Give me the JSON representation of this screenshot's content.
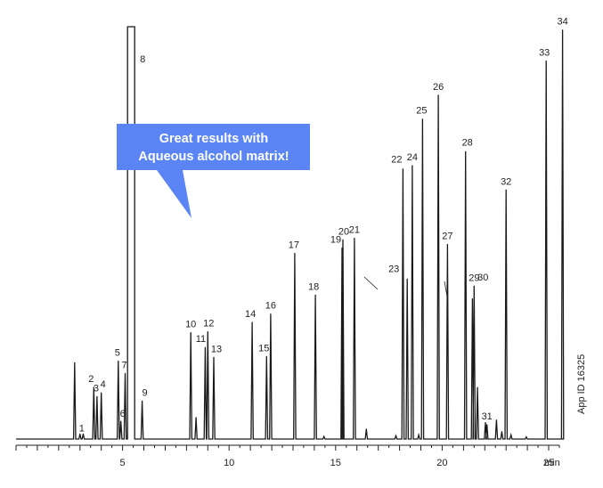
{
  "chart_data": {
    "type": "line",
    "title": "",
    "xlabel": "",
    "ylabel": "",
    "xlim": [
      0,
      25.5
    ],
    "x_ticks": [
      {
        "value": 5,
        "label": "5"
      },
      {
        "value": 10,
        "label": "10"
      },
      {
        "value": 15,
        "label": "15"
      },
      {
        "value": 20,
        "label": "20"
      },
      {
        "value": 25,
        "label": "25"
      }
    ],
    "x_unit": "min",
    "ylim": [
      0,
      100
    ],
    "grid": false,
    "side_label": "App ID 16325",
    "callout": {
      "lines": [
        "Great results with",
        "Aqueous alcohol matrix!"
      ],
      "color": "#5b85f5"
    },
    "line_color": "#1a1a1a",
    "peaks": [
      {
        "label": "",
        "x": 2.75,
        "h": 18.5
      },
      {
        "label": "1",
        "x": 3.0,
        "h": 1.2
      },
      {
        "label": "",
        "x": 3.15,
        "h": 1.2
      },
      {
        "label": "2",
        "x": 3.65,
        "h": 12.5
      },
      {
        "label": "3",
        "x": 3.8,
        "h": 10.3
      },
      {
        "label": "4",
        "x": 4.0,
        "h": 11.2
      },
      {
        "label": "5",
        "x": 4.8,
        "h": 18.9
      },
      {
        "label": "6",
        "x": 4.92,
        "h": 4.3
      },
      {
        "label": "7",
        "x": 5.12,
        "h": 15.9
      },
      {
        "label": "8",
        "x": 5.4,
        "h": 100,
        "flat": true
      },
      {
        "label": "9",
        "x": 5.92,
        "h": 9.2
      },
      {
        "label": "10",
        "x": 8.2,
        "h": 25.8
      },
      {
        "label": "",
        "x": 8.45,
        "h": 5.2
      },
      {
        "label": "11",
        "x": 8.88,
        "h": 22.2
      },
      {
        "label": "12",
        "x": 9.0,
        "h": 26.0
      },
      {
        "label": "13",
        "x": 9.28,
        "h": 19.8
      },
      {
        "label": "14",
        "x": 11.08,
        "h": 28.3
      },
      {
        "label": "15",
        "x": 11.76,
        "h": 20.0
      },
      {
        "label": "16",
        "x": 11.95,
        "h": 30.3
      },
      {
        "label": "17",
        "x": 13.08,
        "h": 45.0
      },
      {
        "label": "18",
        "x": 14.05,
        "h": 34.9
      },
      {
        "label": "",
        "x": 14.45,
        "h": 0.6
      },
      {
        "label": "19",
        "x": 15.3,
        "h": 46.3
      },
      {
        "label": "20",
        "x": 15.34,
        "h": 48.3
      },
      {
        "label": "21",
        "x": 15.88,
        "h": 48.7
      },
      {
        "label": "",
        "x": 16.44,
        "h": 2.4
      },
      {
        "label": "",
        "x": 17.83,
        "h": 0.8
      },
      {
        "label": "22",
        "x": 18.16,
        "h": 65.5
      },
      {
        "label": "23",
        "x": 18.36,
        "h": 38.8
      },
      {
        "label": "24",
        "x": 18.6,
        "h": 66.3
      },
      {
        "label": "",
        "x": 18.9,
        "h": 1.0
      },
      {
        "label": "25",
        "x": 19.08,
        "h": 77.6
      },
      {
        "label": "26",
        "x": 19.82,
        "h": 83.4
      },
      {
        "label": "27",
        "x": 20.25,
        "h": 47.2
      },
      {
        "label": "28",
        "x": 21.1,
        "h": 69.7
      },
      {
        "label": "29",
        "x": 21.42,
        "h": 34.0
      },
      {
        "label": "30",
        "x": 21.5,
        "h": 37.1
      },
      {
        "label": "",
        "x": 21.66,
        "h": 12.5
      },
      {
        "label": "",
        "x": 22.03,
        "h": 4.0
      },
      {
        "label": "31",
        "x": 22.1,
        "h": 3.5
      },
      {
        "label": "",
        "x": 22.55,
        "h": 4.6
      },
      {
        "label": "",
        "x": 22.8,
        "h": 1.8
      },
      {
        "label": "32",
        "x": 23.0,
        "h": 60.4
      },
      {
        "label": "",
        "x": 23.23,
        "h": 1.0
      },
      {
        "label": "",
        "x": 23.95,
        "h": 0.5
      },
      {
        "label": "33",
        "x": 24.88,
        "h": 91.7
      },
      {
        "label": "34",
        "x": 25.65,
        "h": 99.2
      }
    ]
  }
}
